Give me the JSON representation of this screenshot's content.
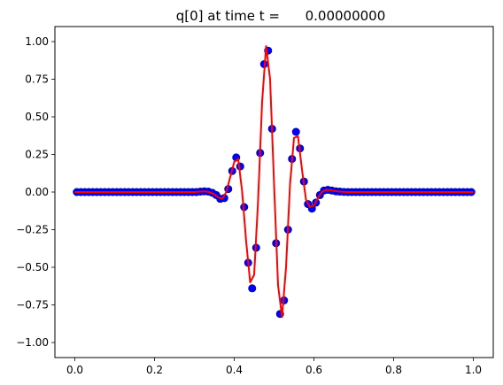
{
  "chart_data": {
    "type": "scatter",
    "title": "q[0] at time t =      0.00000000",
    "xlabel": "",
    "ylabel": "",
    "xlim": [
      -0.05,
      1.05
    ],
    "ylim": [
      -1.1,
      1.1
    ],
    "x_ticks": [
      0.0,
      0.2,
      0.4,
      0.6,
      0.8,
      1.0
    ],
    "x_tick_labels": [
      "0.0",
      "0.2",
      "0.4",
      "0.6",
      "0.8",
      "1.0"
    ],
    "y_ticks": [
      -1.0,
      -0.75,
      -0.5,
      -0.25,
      0.0,
      0.25,
      0.5,
      0.75,
      1.0
    ],
    "y_tick_labels": [
      "−1.00",
      "−0.75",
      "−0.50",
      "−0.25",
      "0.00",
      "0.25",
      "0.50",
      "0.75",
      "1.00"
    ],
    "grid": false,
    "legend": "none",
    "colors": {
      "points": "#0000ff",
      "points_edge": "#000080",
      "line": "#ff0000"
    },
    "series": [
      {
        "kind": "markers",
        "color": "#0000ff",
        "x": [
          0.005,
          0.015,
          0.025,
          0.035,
          0.045,
          0.055,
          0.065,
          0.075,
          0.085,
          0.095,
          0.105,
          0.115,
          0.125,
          0.135,
          0.145,
          0.155,
          0.165,
          0.175,
          0.185,
          0.195,
          0.205,
          0.215,
          0.225,
          0.235,
          0.245,
          0.255,
          0.265,
          0.275,
          0.285,
          0.295,
          0.305,
          0.315,
          0.325,
          0.335,
          0.345,
          0.355,
          0.365,
          0.375,
          0.385,
          0.395,
          0.405,
          0.415,
          0.425,
          0.435,
          0.445,
          0.455,
          0.465,
          0.475,
          0.485,
          0.495,
          0.505,
          0.515,
          0.525,
          0.535,
          0.545,
          0.555,
          0.565,
          0.575,
          0.585,
          0.595,
          0.605,
          0.615,
          0.625,
          0.635,
          0.645,
          0.655,
          0.665,
          0.675,
          0.685,
          0.695,
          0.705,
          0.715,
          0.725,
          0.735,
          0.745,
          0.755,
          0.765,
          0.775,
          0.785,
          0.795,
          0.805,
          0.815,
          0.825,
          0.835,
          0.845,
          0.855,
          0.865,
          0.875,
          0.885,
          0.895,
          0.905,
          0.915,
          0.925,
          0.935,
          0.945,
          0.955,
          0.965,
          0.975,
          0.985,
          0.995
        ],
        "y": [
          0,
          0,
          0,
          0,
          0,
          0,
          0,
          0,
          0,
          0,
          0,
          0,
          0,
          0,
          0,
          0,
          0,
          0,
          0,
          0,
          0,
          0,
          0,
          0,
          0,
          0,
          0,
          0,
          0,
          0,
          0,
          0.003,
          0.005,
          0.003,
          -0.005,
          -0.02,
          -0.045,
          -0.04,
          0.02,
          0.14,
          0.23,
          0.17,
          -0.1,
          -0.47,
          -0.64,
          -0.37,
          0.26,
          0.85,
          0.94,
          0.42,
          -0.34,
          -0.81,
          -0.72,
          -0.25,
          0.22,
          0.4,
          0.29,
          0.07,
          -0.08,
          -0.11,
          -0.07,
          -0.02,
          0.01,
          0.015,
          0.01,
          0.005,
          0.003,
          0.001,
          0,
          0,
          0,
          0,
          0,
          0,
          0,
          0,
          0,
          0,
          0,
          0,
          0,
          0,
          0,
          0,
          0,
          0,
          0,
          0,
          0,
          0,
          0,
          0,
          0,
          0,
          0,
          0,
          0,
          0,
          0,
          0
        ]
      },
      {
        "kind": "line",
        "color": "#ff0000",
        "x": [
          0.0,
          0.01,
          0.02,
          0.03,
          0.04,
          0.05,
          0.06,
          0.07,
          0.08,
          0.09,
          0.1,
          0.11,
          0.12,
          0.13,
          0.14,
          0.15,
          0.16,
          0.17,
          0.18,
          0.19,
          0.2,
          0.21,
          0.22,
          0.23,
          0.24,
          0.25,
          0.26,
          0.27,
          0.28,
          0.29,
          0.3,
          0.31,
          0.32,
          0.33,
          0.34,
          0.35,
          0.36,
          0.37,
          0.38,
          0.39,
          0.4,
          0.41,
          0.42,
          0.43,
          0.44,
          0.45,
          0.46,
          0.47,
          0.48,
          0.49,
          0.5,
          0.51,
          0.52,
          0.53,
          0.54,
          0.55,
          0.56,
          0.57,
          0.58,
          0.59,
          0.6,
          0.61,
          0.62,
          0.63,
          0.64,
          0.65,
          0.66,
          0.67,
          0.68,
          0.69,
          0.7,
          0.71,
          0.72,
          0.73,
          0.74,
          0.75,
          0.76,
          0.77,
          0.78,
          0.79,
          0.8,
          0.81,
          0.82,
          0.83,
          0.84,
          0.85,
          0.86,
          0.87,
          0.88,
          0.89,
          0.9,
          0.91,
          0.92,
          0.93,
          0.94,
          0.95,
          0.96,
          0.97,
          0.98,
          0.99,
          1.0
        ],
        "y": [
          0,
          0,
          0,
          0,
          0,
          0,
          0,
          0,
          0,
          0,
          0,
          0,
          0,
          0,
          0,
          0,
          0,
          0,
          0,
          0,
          0,
          0,
          0,
          0,
          0,
          0,
          0,
          0,
          0,
          0,
          0,
          0.002,
          0.004,
          0.004,
          -0.002,
          -0.015,
          -0.035,
          -0.045,
          0.0,
          0.1,
          0.2,
          0.22,
          0.0,
          -0.33,
          -0.6,
          -0.55,
          -0.05,
          0.6,
          0.97,
          0.75,
          0.05,
          -0.62,
          -0.83,
          -0.5,
          0.05,
          0.36,
          0.37,
          0.15,
          -0.05,
          -0.1,
          -0.09,
          -0.04,
          0.0,
          0.015,
          0.014,
          0.008,
          0.004,
          0.002,
          0.001,
          0,
          0,
          0,
          0,
          0,
          0,
          0,
          0,
          0,
          0,
          0,
          0,
          0,
          0,
          0,
          0,
          0,
          0,
          0,
          0,
          0,
          0,
          0,
          0,
          0,
          0,
          0,
          0,
          0,
          0,
          0,
          0
        ]
      }
    ]
  }
}
